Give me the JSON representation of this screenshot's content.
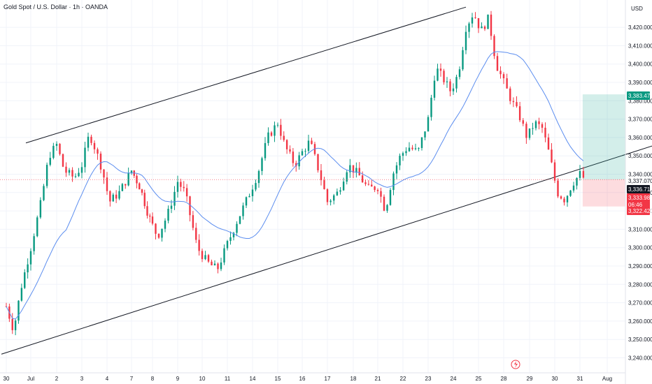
{
  "header": {
    "symbol_title": "Gold Spot / U.S. Dollar · 1h · OANDA"
  },
  "axis": {
    "currency": "USD"
  },
  "chart_data": {
    "type": "candlestick",
    "title": "Gold Spot / U.S. Dollar · 1h · OANDA",
    "ylabel": "USD",
    "ylim": [
      3238,
      3431
    ],
    "y_ticks": [
      "3,240.000",
      "3,250.000",
      "3,260.000",
      "3,270.000",
      "3,280.000",
      "3,290.000",
      "3,300.000",
      "3,310.000",
      "3,320.000",
      "3,330.000",
      "3,340.000",
      "3,350.000",
      "3,360.000",
      "3,370.000",
      "3,380.000",
      "3,390.000",
      "3,400.000",
      "3,410.000",
      "3,420.000"
    ],
    "x_ticks": [
      "30",
      "Jul",
      "2",
      "3",
      "4",
      "7",
      "8",
      "9",
      "10",
      "11",
      "14",
      "15",
      "16",
      "17",
      "18",
      "21",
      "22",
      "23",
      "24",
      "25",
      "28",
      "29",
      "30",
      "31",
      "Aug"
    ],
    "price_path": [
      {
        "d": 0,
        "p": 3268
      },
      {
        "d": 0.3,
        "p": 3255
      },
      {
        "d": 0.6,
        "p": 3278
      },
      {
        "d": 1.0,
        "p": 3300
      },
      {
        "d": 1.4,
        "p": 3325
      },
      {
        "d": 1.7,
        "p": 3350
      },
      {
        "d": 2.0,
        "p": 3356
      },
      {
        "d": 2.3,
        "p": 3342
      },
      {
        "d": 2.7,
        "p": 3338
      },
      {
        "d": 3.0,
        "p": 3345
      },
      {
        "d": 3.3,
        "p": 3362
      },
      {
        "d": 3.5,
        "p": 3355
      },
      {
        "d": 3.8,
        "p": 3343
      },
      {
        "d": 4.1,
        "p": 3325
      },
      {
        "d": 4.5,
        "p": 3330
      },
      {
        "d": 5.0,
        "p": 3342
      },
      {
        "d": 5.4,
        "p": 3333
      },
      {
        "d": 5.8,
        "p": 3318
      },
      {
        "d": 6.2,
        "p": 3306
      },
      {
        "d": 6.6,
        "p": 3318
      },
      {
        "d": 7.0,
        "p": 3336
      },
      {
        "d": 7.3,
        "p": 3330
      },
      {
        "d": 7.8,
        "p": 3300
      },
      {
        "d": 8.2,
        "p": 3292
      },
      {
        "d": 8.6,
        "p": 3288
      },
      {
        "d": 9.0,
        "p": 3302
      },
      {
        "d": 9.4,
        "p": 3315
      },
      {
        "d": 9.8,
        "p": 3327
      },
      {
        "d": 10.2,
        "p": 3340
      },
      {
        "d": 10.6,
        "p": 3360
      },
      {
        "d": 11.0,
        "p": 3368
      },
      {
        "d": 11.3,
        "p": 3355
      },
      {
        "d": 11.7,
        "p": 3345
      },
      {
        "d": 12.0,
        "p": 3352
      },
      {
        "d": 12.3,
        "p": 3358
      },
      {
        "d": 12.7,
        "p": 3340
      },
      {
        "d": 13.0,
        "p": 3325
      },
      {
        "d": 13.4,
        "p": 3330
      },
      {
        "d": 13.8,
        "p": 3345
      },
      {
        "d": 14.2,
        "p": 3340
      },
      {
        "d": 14.6,
        "p": 3332
      },
      {
        "d": 15.0,
        "p": 3333
      },
      {
        "d": 15.3,
        "p": 3320
      },
      {
        "d": 15.6,
        "p": 3340
      },
      {
        "d": 15.9,
        "p": 3350
      },
      {
        "d": 16.2,
        "p": 3355
      },
      {
        "d": 16.6,
        "p": 3352
      },
      {
        "d": 17.0,
        "p": 3370
      },
      {
        "d": 17.3,
        "p": 3398
      },
      {
        "d": 17.6,
        "p": 3392
      },
      {
        "d": 17.9,
        "p": 3385
      },
      {
        "d": 18.2,
        "p": 3395
      },
      {
        "d": 18.5,
        "p": 3420
      },
      {
        "d": 18.8,
        "p": 3428
      },
      {
        "d": 19.1,
        "p": 3418
      },
      {
        "d": 19.4,
        "p": 3425
      },
      {
        "d": 19.7,
        "p": 3400
      },
      {
        "d": 20.0,
        "p": 3390
      },
      {
        "d": 20.3,
        "p": 3380
      },
      {
        "d": 20.6,
        "p": 3372
      },
      {
        "d": 20.9,
        "p": 3360
      },
      {
        "d": 21.2,
        "p": 3368
      },
      {
        "d": 21.5,
        "p": 3365
      },
      {
        "d": 21.8,
        "p": 3350
      },
      {
        "d": 22.1,
        "p": 3330
      },
      {
        "d": 22.4,
        "p": 3326
      },
      {
        "d": 22.7,
        "p": 3335
      },
      {
        "d": 23.0,
        "p": 3340
      },
      {
        "d": 23.2,
        "p": 3337
      }
    ],
    "channel_upper": [
      {
        "d": 0.8,
        "p": 3357
      },
      {
        "d": 18.5,
        "p": 3431
      }
    ],
    "channel_lower": [
      {
        "d": -0.2,
        "p": 3242
      },
      {
        "d": 26.2,
        "p": 3358
      }
    ],
    "current_price_line": 3337.07,
    "position": {
      "entry": "3,337.070",
      "target": "3,383.476",
      "stop": "3,322.426",
      "current": "3,336.714",
      "countdown": "06:46",
      "last": "3,333.985"
    },
    "colors": {
      "up": "#089981",
      "down": "#f23645",
      "ma": "#5b8def",
      "target_zone": "#22ab94",
      "stop_zone": "#f7525f",
      "price_line": "#f23645"
    }
  }
}
